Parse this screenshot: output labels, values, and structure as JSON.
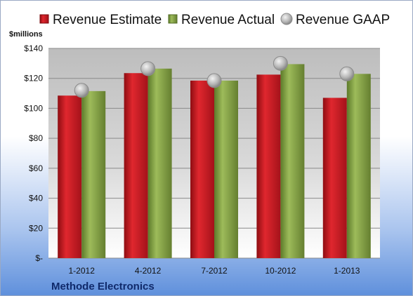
{
  "chart_data": {
    "type": "bar",
    "title": "",
    "company": "Methode Electronics",
    "unit_label": "$millions",
    "categories": [
      "1-2012",
      "4-2012",
      "7-2012",
      "10-2012",
      "1-2013"
    ],
    "series": [
      {
        "name": "Revenue Estimate",
        "type": "bar",
        "color": "#c0141b",
        "values": [
          108.5,
          123.5,
          118.5,
          122.5,
          107
        ]
      },
      {
        "name": "Revenue Actual",
        "type": "bar",
        "color": "#7a9a3c",
        "values": [
          111.5,
          126.5,
          118.5,
          129.5,
          123
        ]
      },
      {
        "name": "Revenue GAAP",
        "type": "scatter",
        "color": "#b9b9b9",
        "values": [
          112,
          126.5,
          118.5,
          130,
          123
        ]
      }
    ],
    "y_ticks": [
      "$-",
      "$20",
      "$40",
      "$60",
      "$80",
      "$100",
      "$120",
      "$140"
    ],
    "ylim": [
      0,
      140
    ],
    "grid": true,
    "legend_position": "top"
  }
}
